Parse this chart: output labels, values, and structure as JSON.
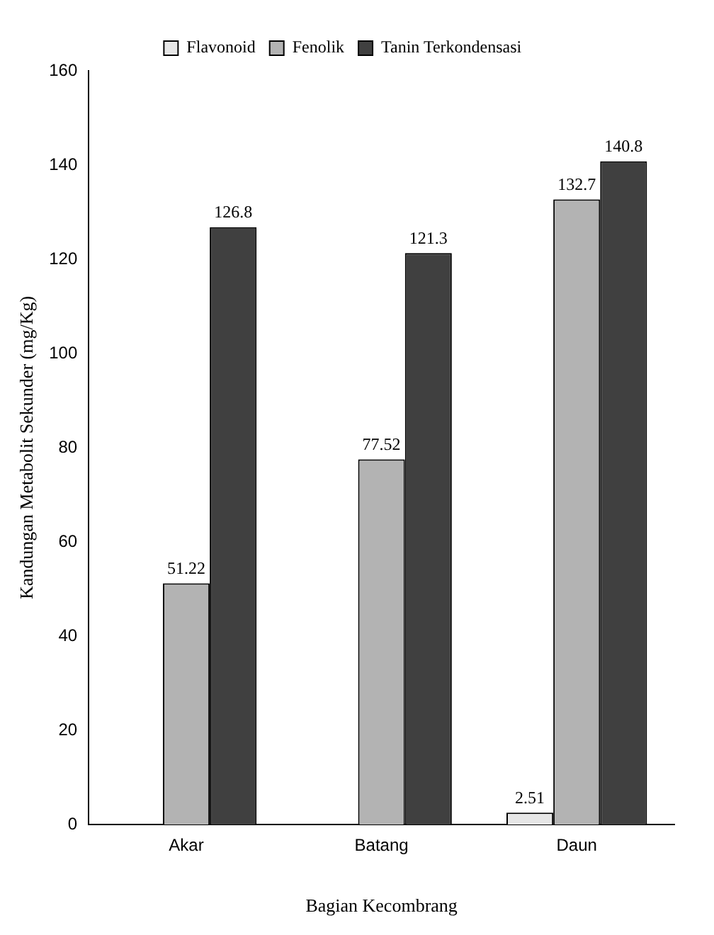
{
  "chart_data": {
    "type": "bar",
    "xlabel": "Bagian Kecombrang",
    "ylabel": "Kandungan Metabolit Sekunder (mg/Kg)",
    "categories": [
      "Akar",
      "Batang",
      "Daun"
    ],
    "series": [
      {
        "name": "Flavonoid",
        "color": "#e6e6e6",
        "values": [
          null,
          null,
          2.51
        ],
        "value_labels": [
          null,
          null,
          "2.51"
        ]
      },
      {
        "name": "Fenolik",
        "color": "#b3b3b3",
        "values": [
          51.22,
          77.52,
          132.7
        ],
        "value_labels": [
          "51.22",
          "77.52",
          "132.7"
        ]
      },
      {
        "name": "Tanin Terkondensasi",
        "color": "#404040",
        "values": [
          126.8,
          121.3,
          140.8
        ],
        "value_labels": [
          "126.8",
          "121.3",
          "140.8"
        ]
      }
    ],
    "ylim": [
      0,
      160
    ],
    "yticks": [
      0,
      20,
      40,
      60,
      80,
      100,
      120,
      140,
      160
    ],
    "grid": false,
    "legend": "top"
  }
}
